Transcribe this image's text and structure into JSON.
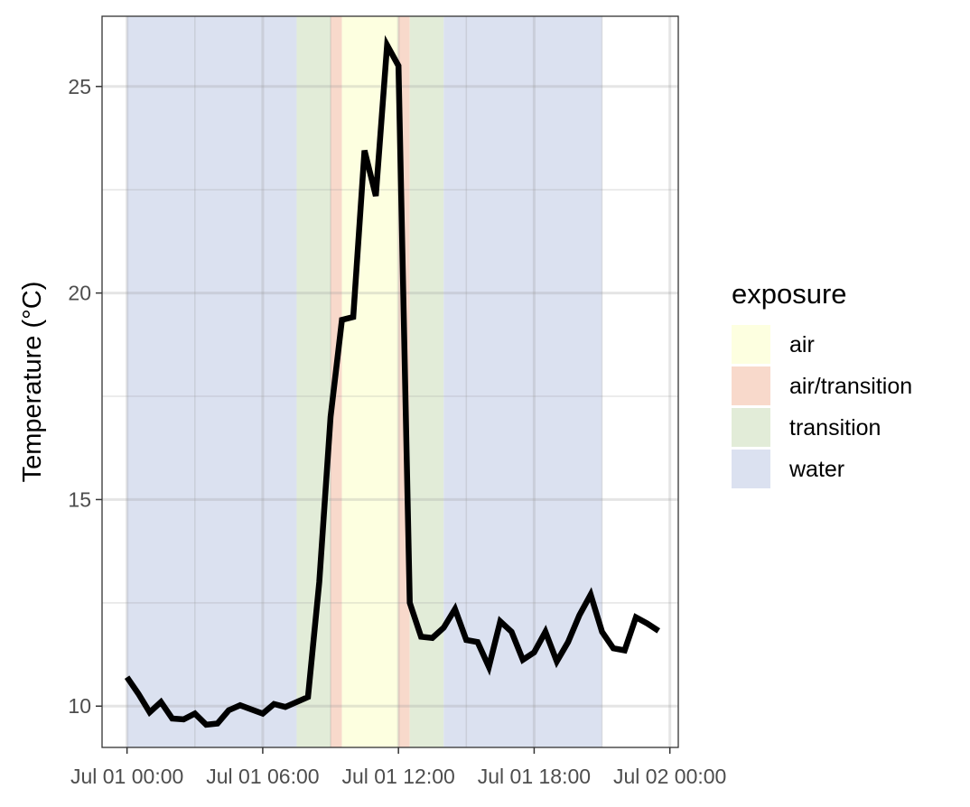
{
  "chart_data": {
    "type": "line",
    "title": "",
    "xlabel": "",
    "ylabel": "Temperature (°C)",
    "xlim": [
      "2023-07-01T00:00",
      "2023-07-02T00:00"
    ],
    "ylim": [
      9,
      26.7
    ],
    "x_ticks": [
      {
        "value": "2023-07-01T00:00",
        "label": "Jul 01 00:00"
      },
      {
        "value": "2023-07-01T06:00",
        "label": "Jul 01 06:00"
      },
      {
        "value": "2023-07-01T12:00",
        "label": "Jul 01 12:00"
      },
      {
        "value": "2023-07-01T18:00",
        "label": "Jul 01 18:00"
      },
      {
        "value": "2023-07-02T00:00",
        "label": "Jul 02 00:00"
      }
    ],
    "y_ticks": [
      10,
      15,
      20,
      25
    ],
    "grid": true,
    "legend": {
      "title": "exposure",
      "placement": "right",
      "entries": [
        {
          "label": "air",
          "color": "#fdffe0"
        },
        {
          "label": "air/transition",
          "color": "#f8d9cb"
        },
        {
          "label": "transition",
          "color": "#e2ecd8"
        },
        {
          "label": "water",
          "color": "#dbe1f0"
        }
      ]
    },
    "exposure_periods": [
      {
        "exposure": "water",
        "start": "2023-07-01T00:00",
        "end": "2023-07-01T07:30"
      },
      {
        "exposure": "transition",
        "start": "2023-07-01T07:30",
        "end": "2023-07-01T09:00"
      },
      {
        "exposure": "air/transition",
        "start": "2023-07-01T09:00",
        "end": "2023-07-01T09:30"
      },
      {
        "exposure": "air",
        "start": "2023-07-01T09:30",
        "end": "2023-07-01T12:00"
      },
      {
        "exposure": "air/transition",
        "start": "2023-07-01T12:00",
        "end": "2023-07-01T12:30"
      },
      {
        "exposure": "transition",
        "start": "2023-07-01T12:30",
        "end": "2023-07-01T14:00"
      },
      {
        "exposure": "water",
        "start": "2023-07-01T14:00",
        "end": "2023-07-01T21:00"
      }
    ],
    "series": [
      {
        "line_color": "#000000",
        "x": [
          "2023-07-01T00:00",
          "2023-07-01T00:30",
          "2023-07-01T01:00",
          "2023-07-01T01:30",
          "2023-07-01T02:00",
          "2023-07-01T02:30",
          "2023-07-01T03:00",
          "2023-07-01T03:30",
          "2023-07-01T04:00",
          "2023-07-01T04:30",
          "2023-07-01T05:00",
          "2023-07-01T05:30",
          "2023-07-01T06:00",
          "2023-07-01T06:30",
          "2023-07-01T07:00",
          "2023-07-01T07:30",
          "2023-07-01T08:00",
          "2023-07-01T08:30",
          "2023-07-01T09:00",
          "2023-07-01T09:30",
          "2023-07-01T10:00",
          "2023-07-01T10:30",
          "2023-07-01T11:00",
          "2023-07-01T11:30",
          "2023-07-01T12:00",
          "2023-07-01T12:30",
          "2023-07-01T13:00",
          "2023-07-01T13:30",
          "2023-07-01T14:00",
          "2023-07-01T14:30",
          "2023-07-01T15:00",
          "2023-07-01T15:30",
          "2023-07-01T16:00",
          "2023-07-01T16:30",
          "2023-07-01T17:00",
          "2023-07-01T17:30",
          "2023-07-01T18:00",
          "2023-07-01T18:30",
          "2023-07-01T19:00",
          "2023-07-01T19:30",
          "2023-07-01T20:00",
          "2023-07-01T20:30",
          "2023-07-01T21:00",
          "2023-07-01T21:30",
          "2023-07-01T22:00",
          "2023-07-01T22:30",
          "2023-07-01T23:00",
          "2023-07-01T23:30"
        ],
        "y": [
          10.7,
          10.3,
          9.85,
          10.1,
          9.7,
          9.68,
          9.82,
          9.55,
          9.58,
          9.9,
          10.02,
          9.92,
          9.82,
          10.05,
          9.98,
          10.1,
          10.22,
          13.0,
          17.0,
          19.35,
          19.42,
          23.45,
          22.35,
          26.0,
          25.5,
          12.5,
          11.68,
          11.65,
          11.9,
          12.35,
          11.6,
          11.55,
          10.95,
          12.05,
          11.8,
          11.12,
          11.3,
          11.8,
          11.08,
          11.55,
          12.2,
          12.7,
          11.8,
          11.4,
          11.35,
          12.15,
          12.0,
          11.82
        ]
      }
    ]
  }
}
